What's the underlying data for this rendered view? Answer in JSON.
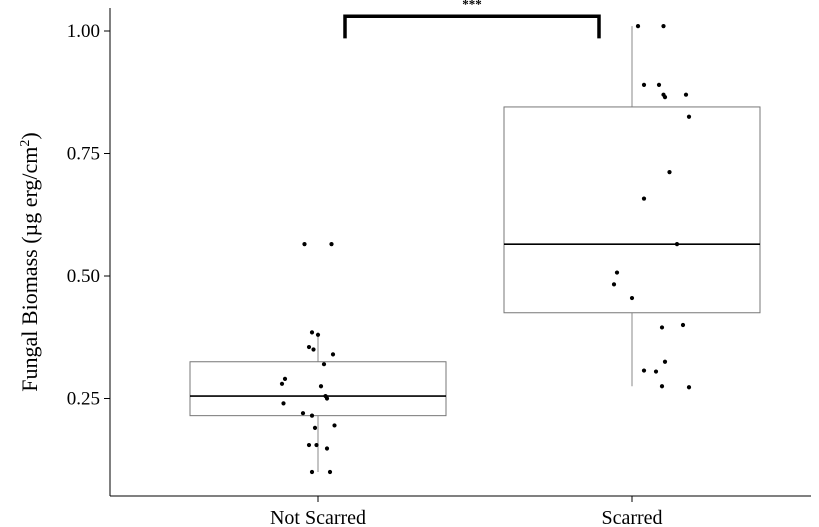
{
  "chart_data": {
    "type": "box",
    "title": "",
    "xlabel": "",
    "ylabel": "Fungal Biomass (µg erg/cm²)",
    "ylabel_main": "Fungal Biomass (µg erg/cm",
    "ylabel_sup": "2",
    "ylabel_close": ")",
    "ylim": [
      0.03,
      1.06
    ],
    "yticks": [
      0.25,
      0.5,
      0.75,
      1.0
    ],
    "ytick_labels": [
      "0.25",
      "0.50",
      "0.75",
      "1.00"
    ],
    "categories": [
      "Not Scarred",
      "Scarred"
    ],
    "boxes": [
      {
        "category": "Not Scarred",
        "whisker_low": 0.1,
        "q1": 0.215,
        "median": 0.255,
        "q3": 0.325,
        "whisker_high": 0.385
      },
      {
        "category": "Scarred",
        "whisker_low": 0.275,
        "q1": 0.425,
        "median": 0.565,
        "q3": 0.845,
        "whisker_high": 1.01
      }
    ],
    "points": [
      [
        {
          "j": -0.045,
          "y": 0.565
        },
        {
          "j": 0.045,
          "y": 0.565
        },
        {
          "j": -0.02,
          "y": 0.385
        },
        {
          "j": 0.0,
          "y": 0.38
        },
        {
          "j": -0.03,
          "y": 0.355
        },
        {
          "j": -0.015,
          "y": 0.35
        },
        {
          "j": 0.05,
          "y": 0.34
        },
        {
          "j": 0.02,
          "y": 0.32
        },
        {
          "j": -0.11,
          "y": 0.29
        },
        {
          "j": -0.12,
          "y": 0.28
        },
        {
          "j": 0.01,
          "y": 0.275
        },
        {
          "j": 0.025,
          "y": 0.255
        },
        {
          "j": 0.03,
          "y": 0.25
        },
        {
          "j": -0.115,
          "y": 0.24
        },
        {
          "j": -0.05,
          "y": 0.22
        },
        {
          "j": -0.02,
          "y": 0.215
        },
        {
          "j": 0.055,
          "y": 0.195
        },
        {
          "j": -0.01,
          "y": 0.19
        },
        {
          "j": -0.03,
          "y": 0.155
        },
        {
          "j": -0.005,
          "y": 0.155
        },
        {
          "j": 0.03,
          "y": 0.148
        },
        {
          "j": -0.02,
          "y": 0.1
        },
        {
          "j": 0.04,
          "y": 0.1
        }
      ],
      [
        {
          "j": 0.02,
          "y": 1.01
        },
        {
          "j": 0.105,
          "y": 1.01
        },
        {
          "j": 0.04,
          "y": 0.89
        },
        {
          "j": 0.09,
          "y": 0.89
        },
        {
          "j": 0.105,
          "y": 0.87
        },
        {
          "j": 0.11,
          "y": 0.865
        },
        {
          "j": 0.18,
          "y": 0.87
        },
        {
          "j": 0.19,
          "y": 0.825
        },
        {
          "j": 0.125,
          "y": 0.712
        },
        {
          "j": 0.04,
          "y": 0.658
        },
        {
          "j": 0.15,
          "y": 0.565
        },
        {
          "j": -0.05,
          "y": 0.507
        },
        {
          "j": -0.06,
          "y": 0.483
        },
        {
          "j": 0.0,
          "y": 0.455
        },
        {
          "j": 0.1,
          "y": 0.395
        },
        {
          "j": 0.17,
          "y": 0.4
        },
        {
          "j": 0.11,
          "y": 0.325
        },
        {
          "j": 0.04,
          "y": 0.307
        },
        {
          "j": 0.08,
          "y": 0.305
        },
        {
          "j": 0.1,
          "y": 0.275
        },
        {
          "j": 0.19,
          "y": 0.273
        }
      ]
    ],
    "significance": {
      "between": [
        "Not Scarred",
        "Scarred"
      ],
      "label": "***",
      "y": 1.03,
      "tip_y": 0.985
    }
  }
}
